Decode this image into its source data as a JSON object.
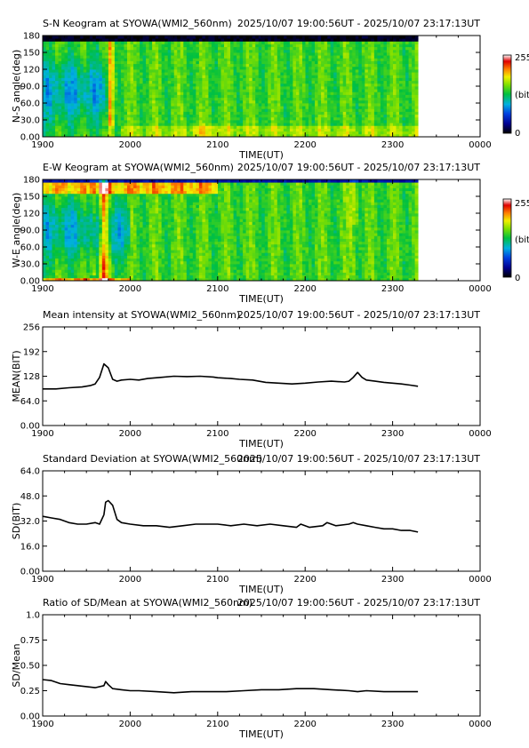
{
  "chart_data": [
    {
      "type": "heatmap",
      "title": "S-N Keogram at SYOWA(WMI2_560nm)",
      "time_range": "2025/10/07 19:00:56UT - 2025/10/07 23:17:13UT",
      "xlabel": "TIME(UT)",
      "ylabel": "N-S angle(deg)",
      "x_ticks": [
        "1900",
        "2000",
        "2100",
        "2200",
        "2300",
        "0000"
      ],
      "y_ticks": [
        "0.00",
        "30.0",
        "60.0",
        "90.0",
        "120",
        "150",
        "180"
      ],
      "colorbar": {
        "max": "255",
        "unit": "(bit)",
        "min": "0"
      },
      "xlim": [
        19.0,
        24.0
      ],
      "ylim": [
        0,
        180
      ],
      "data_end": 23.29,
      "profile": "sn"
    },
    {
      "type": "heatmap",
      "title": "E-W Keogram at SYOWA(WMI2_560nm)",
      "time_range": "2025/10/07 19:00:56UT - 2025/10/07 23:17:13UT",
      "xlabel": "TIME(UT)",
      "ylabel": "W-E angle(deg)",
      "x_ticks": [
        "1900",
        "2000",
        "2100",
        "2200",
        "2300",
        "0000"
      ],
      "y_ticks": [
        "0.00",
        "30.0",
        "60.0",
        "90.0",
        "120",
        "150",
        "180"
      ],
      "colorbar": {
        "max": "255",
        "unit": "(bit)",
        "min": "0"
      },
      "xlim": [
        19.0,
        24.0
      ],
      "ylim": [
        0,
        180
      ],
      "data_end": 23.29,
      "profile": "ew"
    },
    {
      "type": "line",
      "title": "Mean intensity at SYOWA(WMI2_560nm)",
      "time_range": "2025/10/07 19:00:56UT - 2025/10/07 23:17:13UT",
      "xlabel": "TIME(UT)",
      "ylabel": "MEAN(BIT)",
      "x_ticks": [
        "1900",
        "2000",
        "2100",
        "2200",
        "2300",
        "0000"
      ],
      "y_ticks": [
        "0.00",
        "64.0",
        "128",
        "192",
        "256"
      ],
      "xlim": [
        19.0,
        24.0
      ],
      "ylim": [
        0,
        256
      ],
      "series": [
        {
          "x": [
            19.0,
            19.15,
            19.3,
            19.45,
            19.55,
            19.6,
            19.65,
            19.7,
            19.75,
            19.8,
            19.85,
            19.9,
            20.0,
            20.1,
            20.2,
            20.35,
            20.5,
            20.65,
            20.8,
            20.95,
            21.0,
            21.15,
            21.25,
            21.4,
            21.55,
            21.7,
            21.85,
            22.0,
            22.15,
            22.3,
            22.45,
            22.5,
            22.55,
            22.6,
            22.65,
            22.7,
            22.8,
            22.9,
            23.0,
            23.1,
            23.2,
            23.29
          ],
          "y": [
            95,
            95,
            98,
            100,
            104,
            108,
            125,
            160,
            150,
            120,
            115,
            118,
            120,
            118,
            122,
            125,
            128,
            127,
            128,
            126,
            124,
            122,
            120,
            118,
            112,
            110,
            108,
            110,
            113,
            115,
            113,
            115,
            125,
            138,
            125,
            118,
            115,
            112,
            110,
            108,
            105,
            102
          ]
        }
      ]
    },
    {
      "type": "line",
      "title": "Standard Deviation at SYOWA(WMI2_560nm)",
      "time_range": "2025/10/07 19:00:56UT - 2025/10/07 23:17:13UT",
      "xlabel": "TIME(UT)",
      "ylabel": "SD(BIT)",
      "x_ticks": [
        "1900",
        "2000",
        "2100",
        "2200",
        "2300",
        "0000"
      ],
      "y_ticks": [
        "0.00",
        "16.0",
        "32.0",
        "48.0",
        "64.0"
      ],
      "xlim": [
        19.0,
        24.0
      ],
      "ylim": [
        0,
        64
      ],
      "series": [
        {
          "x": [
            19.0,
            19.1,
            19.2,
            19.3,
            19.4,
            19.5,
            19.6,
            19.65,
            19.7,
            19.72,
            19.75,
            19.8,
            19.85,
            19.9,
            20.0,
            20.15,
            20.3,
            20.45,
            20.6,
            20.75,
            20.9,
            21.0,
            21.15,
            21.3,
            21.45,
            21.6,
            21.75,
            21.9,
            21.95,
            22.05,
            22.2,
            22.25,
            22.35,
            22.5,
            22.55,
            22.6,
            22.7,
            22.8,
            22.9,
            23.0,
            23.1,
            23.2,
            23.29
          ],
          "y": [
            35,
            34,
            33,
            31,
            30,
            30,
            31,
            30,
            36,
            44,
            45,
            42,
            33,
            31,
            30,
            29,
            29,
            28,
            29,
            30,
            30,
            30,
            29,
            30,
            29,
            30,
            29,
            28,
            30,
            28,
            29,
            31,
            29,
            30,
            31,
            30,
            29,
            28,
            27,
            27,
            26,
            26,
            25
          ]
        }
      ]
    },
    {
      "type": "line",
      "title": "Ratio of SD/Mean at SYOWA(WMI2_560nm)",
      "time_range": "2025/10/07 19:00:56UT - 2025/10/07 23:17:13UT",
      "xlabel": "TIME(UT)",
      "ylabel": "SD/Mean",
      "x_ticks": [
        "1900",
        "2000",
        "2100",
        "2200",
        "2300",
        "0000"
      ],
      "y_ticks": [
        "0.00",
        "0.25",
        "0.50",
        "0.75",
        "1.0"
      ],
      "xlim": [
        19.0,
        24.0
      ],
      "ylim": [
        0,
        1.0
      ],
      "series": [
        {
          "x": [
            19.0,
            19.1,
            19.2,
            19.3,
            19.4,
            19.5,
            19.6,
            19.7,
            19.72,
            19.75,
            19.8,
            19.9,
            20.0,
            20.1,
            20.3,
            20.5,
            20.7,
            20.9,
            21.1,
            21.3,
            21.5,
            21.7,
            21.9,
            22.1,
            22.3,
            22.5,
            22.6,
            22.7,
            22.9,
            23.1,
            23.29
          ],
          "y": [
            0.36,
            0.35,
            0.32,
            0.31,
            0.3,
            0.29,
            0.28,
            0.3,
            0.34,
            0.31,
            0.27,
            0.26,
            0.25,
            0.25,
            0.24,
            0.23,
            0.24,
            0.24,
            0.24,
            0.25,
            0.26,
            0.26,
            0.27,
            0.27,
            0.26,
            0.25,
            0.24,
            0.25,
            0.24,
            0.24,
            0.24
          ]
        }
      ]
    }
  ]
}
